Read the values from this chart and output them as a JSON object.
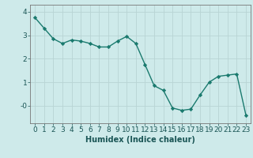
{
  "x": [
    0,
    1,
    2,
    3,
    4,
    5,
    6,
    7,
    8,
    9,
    10,
    11,
    12,
    13,
    14,
    15,
    16,
    17,
    18,
    19,
    20,
    21,
    22,
    23
  ],
  "y": [
    3.75,
    3.3,
    2.85,
    2.65,
    2.8,
    2.75,
    2.65,
    2.5,
    2.5,
    2.75,
    2.95,
    2.65,
    1.75,
    0.85,
    0.65,
    -0.1,
    -0.2,
    -0.15,
    0.45,
    1.0,
    1.25,
    1.3,
    1.35,
    -0.4
  ],
  "line_color": "#1a7a6e",
  "marker": "D",
  "marker_size": 2.2,
  "bg_color": "#ceeaea",
  "grid_color": "#b8d4d4",
  "axis_bg": "#ceeaea",
  "xlabel": "Humidex (Indice chaleur)",
  "ylim": [
    -0.75,
    4.3
  ],
  "xlim": [
    -0.5,
    23.5
  ],
  "xticks": [
    0,
    1,
    2,
    3,
    4,
    5,
    6,
    7,
    8,
    9,
    10,
    11,
    12,
    13,
    14,
    15,
    16,
    17,
    18,
    19,
    20,
    21,
    22,
    23
  ],
  "xlabel_fontsize": 7,
  "tick_fontsize": 6.5,
  "line_width": 1.0
}
